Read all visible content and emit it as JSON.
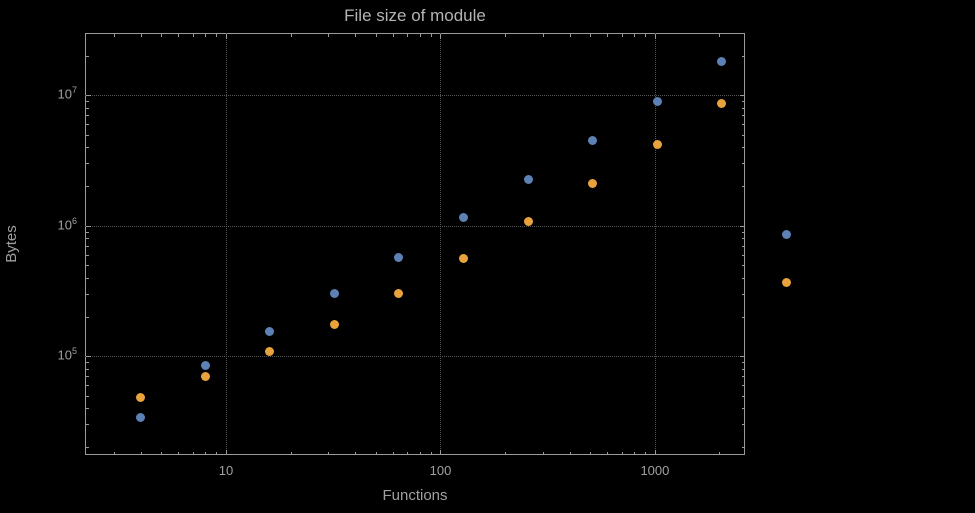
{
  "chart_data": {
    "type": "scatter",
    "title": "File size of module",
    "xlabel": "Functions",
    "ylabel": "Bytes",
    "xscale": "log",
    "yscale": "log",
    "xlim": [
      2.2,
      2630
    ],
    "ylim": [
      17500,
      30000000
    ],
    "grid": true,
    "legend": "none",
    "x": [
      4,
      8,
      16,
      32,
      64,
      128,
      256,
      512,
      1024,
      2048,
      4096
    ],
    "series": [
      {
        "name": "blue",
        "color": "#5e81b5",
        "values": [
          34000,
          85000,
          155000,
          300000,
          570000,
          1150000,
          2250000,
          4500000,
          9000000,
          18000000,
          850000
        ]
      },
      {
        "name": "orange",
        "color": "#e8a33d",
        "values": [
          48000,
          70000,
          108000,
          175000,
          300000,
          560000,
          1080000,
          2100000,
          4200000,
          8700000,
          370000
        ]
      }
    ],
    "xticks": [
      {
        "value": 10,
        "label": "10"
      },
      {
        "value": 100,
        "label": "100"
      },
      {
        "value": 1000,
        "label": "1000"
      }
    ],
    "yticks": [
      {
        "value": 100000,
        "base": "10",
        "exp": "5"
      },
      {
        "value": 1000000,
        "base": "10",
        "exp": "6"
      },
      {
        "value": 10000000,
        "base": "10",
        "exp": "7"
      }
    ],
    "colors": {
      "background": "#000000",
      "frame": "#9a9a9a",
      "grid": "#565656",
      "title": "#b4b4b4",
      "labels": "#a0a0a0"
    }
  }
}
